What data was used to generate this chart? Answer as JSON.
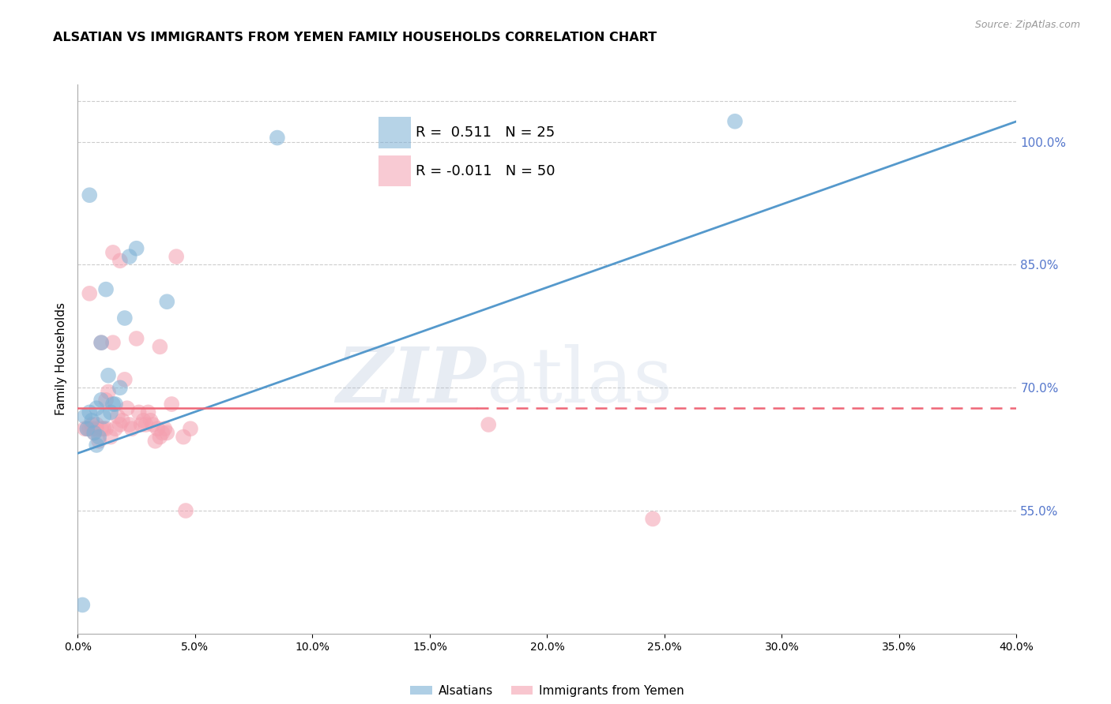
{
  "title": "ALSATIAN VS IMMIGRANTS FROM YEMEN FAMILY HOUSEHOLDS CORRELATION CHART",
  "source": "Source: ZipAtlas.com",
  "ylabel": "Family Households",
  "right_yticks": [
    100.0,
    85.0,
    70.0,
    55.0
  ],
  "xmin": 0.0,
  "xmax": 40.0,
  "ymin": 40.0,
  "ymax": 107.0,
  "legend_blue_r": "0.511",
  "legend_blue_n": "25",
  "legend_pink_r": "-0.011",
  "legend_pink_n": "50",
  "blue_color": "#7BAFD4",
  "pink_color": "#F4A0B0",
  "trendline_blue_color": "#5599CC",
  "trendline_pink_color": "#EE6677",
  "grid_color": "#CCCCCC",
  "right_axis_color": "#5577CC",
  "blue_x": [
    0.3,
    0.4,
    0.5,
    0.5,
    0.6,
    0.7,
    0.8,
    0.8,
    0.9,
    1.0,
    1.0,
    1.1,
    1.2,
    1.3,
    1.4,
    1.5,
    1.6,
    1.8,
    2.0,
    2.2,
    2.5,
    3.8,
    0.2,
    8.5,
    28.0
  ],
  "blue_y": [
    66.5,
    65.0,
    93.5,
    67.0,
    66.0,
    64.5,
    67.5,
    63.0,
    64.0,
    68.5,
    75.5,
    66.5,
    82.0,
    71.5,
    67.0,
    68.0,
    68.0,
    70.0,
    78.5,
    86.0,
    87.0,
    80.5,
    43.5,
    100.5,
    102.5
  ],
  "pink_x": [
    0.3,
    0.4,
    0.5,
    0.5,
    0.6,
    0.6,
    0.7,
    0.8,
    0.8,
    0.9,
    1.0,
    1.0,
    1.1,
    1.2,
    1.2,
    1.3,
    1.4,
    1.5,
    1.5,
    1.6,
    1.7,
    1.8,
    1.8,
    1.9,
    2.0,
    2.1,
    2.2,
    2.3,
    2.5,
    2.6,
    2.7,
    2.8,
    2.9,
    3.0,
    3.1,
    3.2,
    3.3,
    3.4,
    3.5,
    3.5,
    3.6,
    3.7,
    3.8,
    4.0,
    4.2,
    4.5,
    4.6,
    4.8,
    17.5,
    24.5
  ],
  "pink_y": [
    65.0,
    65.0,
    81.5,
    65.0,
    65.0,
    65.5,
    64.5,
    65.0,
    65.5,
    63.5,
    65.0,
    75.5,
    65.0,
    65.0,
    68.5,
    69.5,
    64.0,
    86.5,
    75.5,
    65.0,
    66.5,
    65.5,
    85.5,
    66.0,
    71.0,
    67.5,
    65.5,
    65.0,
    76.0,
    67.0,
    65.5,
    66.0,
    65.5,
    67.0,
    66.0,
    65.5,
    63.5,
    65.0,
    75.0,
    64.0,
    64.5,
    65.0,
    64.5,
    68.0,
    86.0,
    64.0,
    55.0,
    65.0,
    65.5,
    54.0
  ],
  "blue_trend_x": [
    0.0,
    40.0
  ],
  "blue_trend_y": [
    62.0,
    102.5
  ],
  "pink_trend_x": [
    0.0,
    40.0
  ],
  "pink_trend_y": [
    67.5,
    67.5
  ]
}
